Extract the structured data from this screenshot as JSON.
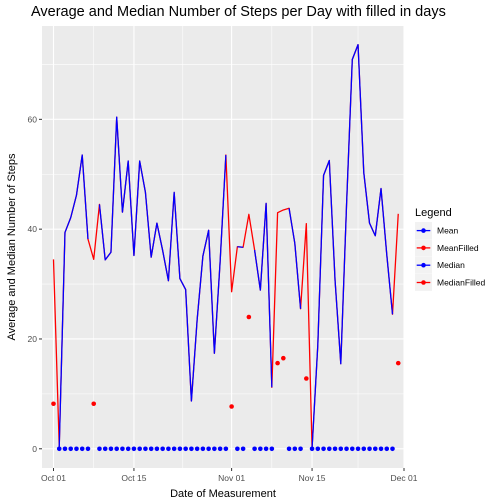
{
  "chart_data": {
    "type": "line",
    "title": "Average and Median Number of Steps per Day with filled in days",
    "xlabel": "Date of Measurement",
    "ylabel": "Average and Median Number of Steps",
    "x_ticks": [
      {
        "value": "2012-10-01",
        "label": "Oct 01"
      },
      {
        "value": "2012-10-15",
        "label": "Oct 15"
      },
      {
        "value": "2012-11-01",
        "label": "Nov 01"
      },
      {
        "value": "2012-11-15",
        "label": "Nov 15"
      },
      {
        "value": "2012-12-01",
        "label": "Dec 01"
      }
    ],
    "xlim": [
      "2012-09-29",
      "2012-12-01"
    ],
    "y_ticks": [
      0,
      20,
      40,
      60
    ],
    "ylim": [
      -3.5,
      77
    ],
    "grid": true,
    "legend": {
      "title": "Legend",
      "placement": "right",
      "entries": [
        {
          "label": "Mean",
          "color": "#0000FF"
        },
        {
          "label": "MeanFilled",
          "color": "#FF0000"
        },
        {
          "label": "Median",
          "color": "#0000FF"
        },
        {
          "label": "MedianFilled",
          "color": "#FF0000"
        }
      ]
    },
    "series": [
      {
        "name": "MeanFilled",
        "kind": "line",
        "color": "#FF0000",
        "points": [
          [
            "2012-10-01",
            34.5
          ],
          [
            "2012-10-02",
            0.4
          ],
          [
            "2012-10-03",
            39.4
          ],
          [
            "2012-10-04",
            42.1
          ],
          [
            "2012-10-05",
            46.2
          ],
          [
            "2012-10-06",
            53.5
          ],
          [
            "2012-10-07",
            38.2
          ],
          [
            "2012-10-08",
            34.5
          ],
          [
            "2012-10-09",
            44.5
          ],
          [
            "2012-10-10",
            34.4
          ],
          [
            "2012-10-11",
            35.8
          ],
          [
            "2012-10-12",
            60.4
          ],
          [
            "2012-10-13",
            43.1
          ],
          [
            "2012-10-14",
            52.4
          ],
          [
            "2012-10-15",
            35.2
          ],
          [
            "2012-10-16",
            52.4
          ],
          [
            "2012-10-17",
            46.7
          ],
          [
            "2012-10-18",
            34.9
          ],
          [
            "2012-10-19",
            41.1
          ],
          [
            "2012-10-20",
            36.1
          ],
          [
            "2012-10-21",
            30.6
          ],
          [
            "2012-10-22",
            46.7
          ],
          [
            "2012-10-23",
            31.0
          ],
          [
            "2012-10-24",
            29.0
          ],
          [
            "2012-10-25",
            8.7
          ],
          [
            "2012-10-26",
            23.5
          ],
          [
            "2012-10-27",
            35.1
          ],
          [
            "2012-10-28",
            39.8
          ],
          [
            "2012-10-29",
            17.4
          ],
          [
            "2012-10-30",
            34.1
          ],
          [
            "2012-10-31",
            53.5
          ],
          [
            "2012-11-01",
            28.6
          ],
          [
            "2012-11-02",
            36.8
          ],
          [
            "2012-11-03",
            36.7
          ],
          [
            "2012-11-04",
            42.7
          ],
          [
            "2012-11-05",
            36.2
          ],
          [
            "2012-11-06",
            28.9
          ],
          [
            "2012-11-07",
            44.7
          ],
          [
            "2012-11-08",
            11.2
          ],
          [
            "2012-11-09",
            43.0
          ],
          [
            "2012-11-10",
            43.5
          ],
          [
            "2012-11-11",
            43.8
          ],
          [
            "2012-11-12",
            37.4
          ],
          [
            "2012-11-13",
            25.5
          ],
          [
            "2012-11-14",
            41.0
          ],
          [
            "2012-11-15",
            0.1
          ],
          [
            "2012-11-16",
            18.9
          ],
          [
            "2012-11-17",
            49.8
          ],
          [
            "2012-11-18",
            52.5
          ],
          [
            "2012-11-19",
            30.7
          ],
          [
            "2012-11-20",
            15.5
          ],
          [
            "2012-11-21",
            44.4
          ],
          [
            "2012-11-22",
            70.9
          ],
          [
            "2012-11-23",
            73.6
          ],
          [
            "2012-11-24",
            50.3
          ],
          [
            "2012-11-25",
            41.1
          ],
          [
            "2012-11-26",
            38.8
          ],
          [
            "2012-11-27",
            47.4
          ],
          [
            "2012-11-28",
            35.4
          ],
          [
            "2012-11-29",
            24.5
          ],
          [
            "2012-11-30",
            42.8
          ]
        ]
      },
      {
        "name": "Mean",
        "kind": "line",
        "color": "#0000FF",
        "points": [
          [
            "2012-10-02",
            0.4
          ],
          [
            "2012-10-03",
            39.4
          ],
          [
            "2012-10-04",
            42.1
          ],
          [
            "2012-10-05",
            46.2
          ],
          [
            "2012-10-06",
            53.5
          ],
          [
            "2012-10-07",
            38.2
          ]
        ]
      },
      {
        "name": "Mean",
        "kind": "line",
        "color": "#0000FF",
        "points": [
          [
            "2012-10-09",
            44.5
          ],
          [
            "2012-10-10",
            34.4
          ],
          [
            "2012-10-11",
            35.8
          ],
          [
            "2012-10-12",
            60.4
          ],
          [
            "2012-10-13",
            43.1
          ],
          [
            "2012-10-14",
            52.4
          ],
          [
            "2012-10-15",
            35.2
          ],
          [
            "2012-10-16",
            52.4
          ],
          [
            "2012-10-17",
            46.7
          ],
          [
            "2012-10-18",
            34.9
          ],
          [
            "2012-10-19",
            41.1
          ],
          [
            "2012-10-20",
            36.1
          ],
          [
            "2012-10-21",
            30.6
          ],
          [
            "2012-10-22",
            46.7
          ],
          [
            "2012-10-23",
            31.0
          ],
          [
            "2012-10-24",
            29.0
          ],
          [
            "2012-10-25",
            8.7
          ],
          [
            "2012-10-26",
            23.5
          ],
          [
            "2012-10-27",
            35.1
          ],
          [
            "2012-10-28",
            39.8
          ],
          [
            "2012-10-29",
            17.4
          ],
          [
            "2012-10-30",
            34.1
          ],
          [
            "2012-10-31",
            53.5
          ]
        ]
      },
      {
        "name": "Mean",
        "kind": "line",
        "color": "#0000FF",
        "points": [
          [
            "2012-11-02",
            36.8
          ],
          [
            "2012-11-03",
            36.7
          ]
        ]
      },
      {
        "name": "Mean",
        "kind": "line",
        "color": "#0000FF",
        "points": [
          [
            "2012-11-05",
            36.2
          ],
          [
            "2012-11-06",
            28.9
          ],
          [
            "2012-11-07",
            44.7
          ],
          [
            "2012-11-08",
            11.2
          ]
        ]
      },
      {
        "name": "Mean",
        "kind": "line",
        "color": "#0000FF",
        "points": [
          [
            "2012-11-11",
            43.8
          ],
          [
            "2012-11-12",
            37.4
          ],
          [
            "2012-11-13",
            25.5
          ]
        ]
      },
      {
        "name": "Mean",
        "kind": "line",
        "color": "#0000FF",
        "points": [
          [
            "2012-11-15",
            0.1
          ],
          [
            "2012-11-16",
            18.9
          ],
          [
            "2012-11-17",
            49.8
          ],
          [
            "2012-11-18",
            52.5
          ],
          [
            "2012-11-19",
            30.7
          ],
          [
            "2012-11-20",
            15.5
          ],
          [
            "2012-11-21",
            44.4
          ],
          [
            "2012-11-22",
            70.9
          ],
          [
            "2012-11-23",
            73.6
          ],
          [
            "2012-11-24",
            50.3
          ],
          [
            "2012-11-25",
            41.1
          ],
          [
            "2012-11-26",
            38.8
          ],
          [
            "2012-11-27",
            47.4
          ],
          [
            "2012-11-28",
            35.4
          ],
          [
            "2012-11-29",
            24.5
          ]
        ]
      },
      {
        "name": "MedianFilled",
        "kind": "points",
        "color": "#FF0000",
        "points": [
          [
            "2012-10-01",
            8.2
          ],
          [
            "2012-10-08",
            8.2
          ],
          [
            "2012-11-01",
            7.7
          ],
          [
            "2012-11-04",
            24.0
          ],
          [
            "2012-11-09",
            15.6
          ],
          [
            "2012-11-10",
            16.5
          ],
          [
            "2012-11-14",
            12.8
          ],
          [
            "2012-11-30",
            15.6
          ]
        ]
      },
      {
        "name": "Median",
        "kind": "points",
        "color": "#0000FF",
        "points": [
          [
            "2012-10-02",
            0
          ],
          [
            "2012-10-03",
            0
          ],
          [
            "2012-10-04",
            0
          ],
          [
            "2012-10-05",
            0
          ],
          [
            "2012-10-06",
            0
          ],
          [
            "2012-10-07",
            0
          ],
          [
            "2012-10-09",
            0
          ],
          [
            "2012-10-10",
            0
          ],
          [
            "2012-10-11",
            0
          ],
          [
            "2012-10-12",
            0
          ],
          [
            "2012-10-13",
            0
          ],
          [
            "2012-10-14",
            0
          ],
          [
            "2012-10-15",
            0
          ],
          [
            "2012-10-16",
            0
          ],
          [
            "2012-10-17",
            0
          ],
          [
            "2012-10-18",
            0
          ],
          [
            "2012-10-19",
            0
          ],
          [
            "2012-10-20",
            0
          ],
          [
            "2012-10-21",
            0
          ],
          [
            "2012-10-22",
            0
          ],
          [
            "2012-10-23",
            0
          ],
          [
            "2012-10-24",
            0
          ],
          [
            "2012-10-25",
            0
          ],
          [
            "2012-10-26",
            0
          ],
          [
            "2012-10-27",
            0
          ],
          [
            "2012-10-28",
            0
          ],
          [
            "2012-10-29",
            0
          ],
          [
            "2012-10-30",
            0
          ],
          [
            "2012-10-31",
            0
          ],
          [
            "2012-11-02",
            0
          ],
          [
            "2012-11-03",
            0
          ],
          [
            "2012-11-05",
            0
          ],
          [
            "2012-11-06",
            0
          ],
          [
            "2012-11-07",
            0
          ],
          [
            "2012-11-08",
            0
          ],
          [
            "2012-11-11",
            0
          ],
          [
            "2012-11-12",
            0
          ],
          [
            "2012-11-13",
            0
          ],
          [
            "2012-11-15",
            0
          ],
          [
            "2012-11-16",
            0
          ],
          [
            "2012-11-17",
            0
          ],
          [
            "2012-11-18",
            0
          ],
          [
            "2012-11-19",
            0
          ],
          [
            "2012-11-20",
            0
          ],
          [
            "2012-11-21",
            0
          ],
          [
            "2012-11-22",
            0
          ],
          [
            "2012-11-23",
            0
          ],
          [
            "2012-11-24",
            0
          ],
          [
            "2012-11-25",
            0
          ],
          [
            "2012-11-26",
            0
          ],
          [
            "2012-11-27",
            0
          ],
          [
            "2012-11-28",
            0
          ],
          [
            "2012-11-29",
            0
          ]
        ]
      }
    ]
  }
}
